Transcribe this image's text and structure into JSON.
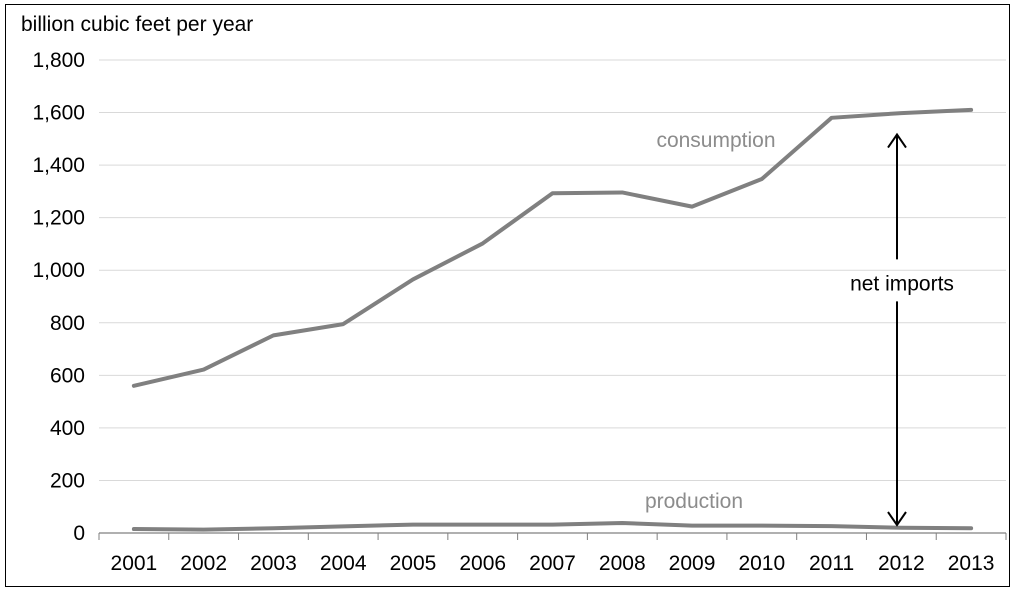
{
  "chart_data": {
    "type": "line",
    "unit_label": "billion cubic feet per year",
    "x": [
      "2001",
      "2002",
      "2003",
      "2004",
      "2005",
      "2006",
      "2007",
      "2008",
      "2009",
      "2010",
      "2011",
      "2012",
      "2013"
    ],
    "ylim": [
      0,
      1800
    ],
    "yticks": [
      0,
      200,
      400,
      600,
      800,
      1000,
      1200,
      1400,
      1600,
      1800
    ],
    "ytick_labels": [
      "0",
      "200",
      "400",
      "600",
      "800",
      "1,000",
      "1,200",
      "1,400",
      "1,600",
      "1,800"
    ],
    "grid": true,
    "series": [
      {
        "name": "consumption",
        "color": "#808080",
        "values": [
          560,
          622,
          752,
          795,
          965,
          1102,
          1293,
          1296,
          1242,
          1347,
          1580,
          1598,
          1610
        ]
      },
      {
        "name": "production",
        "color": "#808080",
        "values": [
          15,
          13,
          18,
          25,
          32,
          32,
          32,
          38,
          28,
          28,
          26,
          20,
          18
        ]
      }
    ],
    "annotation": {
      "text": "net imports",
      "x": "2012",
      "from": 0,
      "to": 1600
    }
  }
}
